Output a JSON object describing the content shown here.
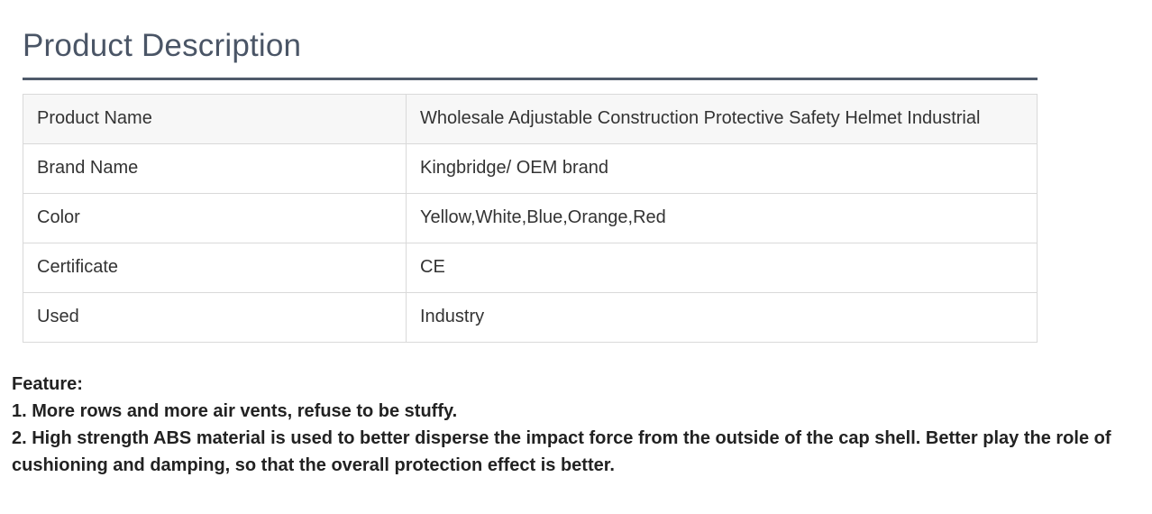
{
  "section": {
    "title": "Product Description"
  },
  "spec_table": {
    "rows": [
      {
        "key": "Product Name",
        "value": "Wholesale Adjustable Construction Protective Safety Helmet Industrial"
      },
      {
        "key": "Brand Name",
        "value": "Kingbridge/ OEM brand"
      },
      {
        "key": "Color",
        "value": "Yellow,White,Blue,Orange,Red"
      },
      {
        "key": "Certificate",
        "value": "CE"
      },
      {
        "key": "Used",
        "value": "Industry"
      }
    ]
  },
  "features": {
    "heading": "Feature:",
    "items": [
      "1. More rows and more air vents, refuse to be stuffy.",
      "2. High strength ABS material is used to better disperse the impact force from the outside of the cap shell. Better play the role of cushioning and damping, so that the overall protection effect is better."
    ]
  }
}
